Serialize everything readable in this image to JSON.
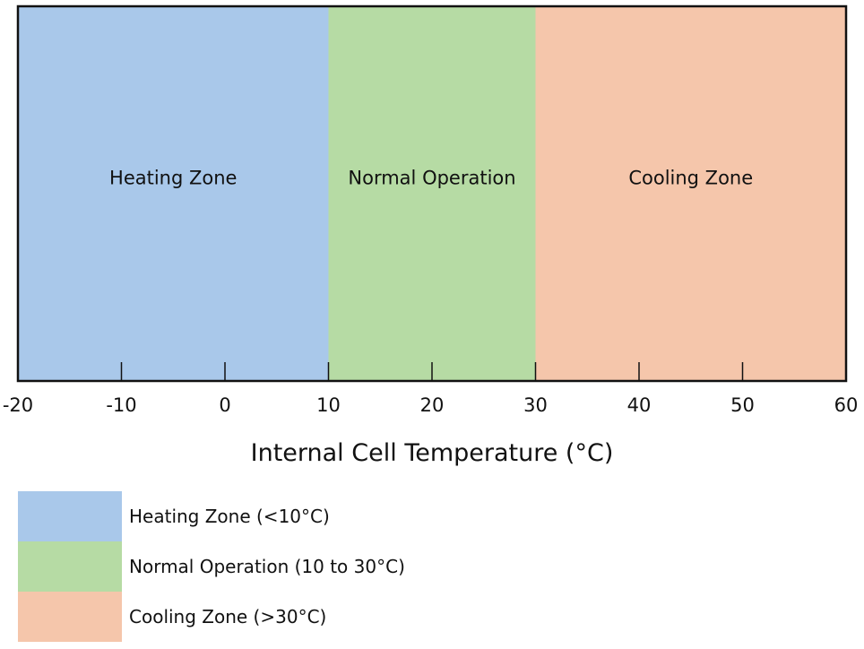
{
  "chart_data": {
    "type": "range-band",
    "xlabel": "Internal Cell Temperature (°C)",
    "xlim": [
      -20,
      60
    ],
    "x_ticks": [
      -20,
      -10,
      0,
      10,
      20,
      30,
      40,
      50,
      60
    ],
    "zones": [
      {
        "name": "Heating Zone",
        "start": -20,
        "end": 10,
        "color": "#a9c8ea"
      },
      {
        "name": "Normal Operation",
        "start": 10,
        "end": 30,
        "color": "#b6dba4"
      },
      {
        "name": "Cooling Zone",
        "start": 30,
        "end": 60,
        "color": "#f5c6ab"
      }
    ],
    "legend": [
      {
        "label": "Heating Zone (<10°C)",
        "color": "#a9c8ea"
      },
      {
        "label": "Normal Operation (10 to 30°C)",
        "color": "#b6dba4"
      },
      {
        "label": "Cooling Zone (>30°C)",
        "color": "#f5c6ab"
      }
    ]
  }
}
